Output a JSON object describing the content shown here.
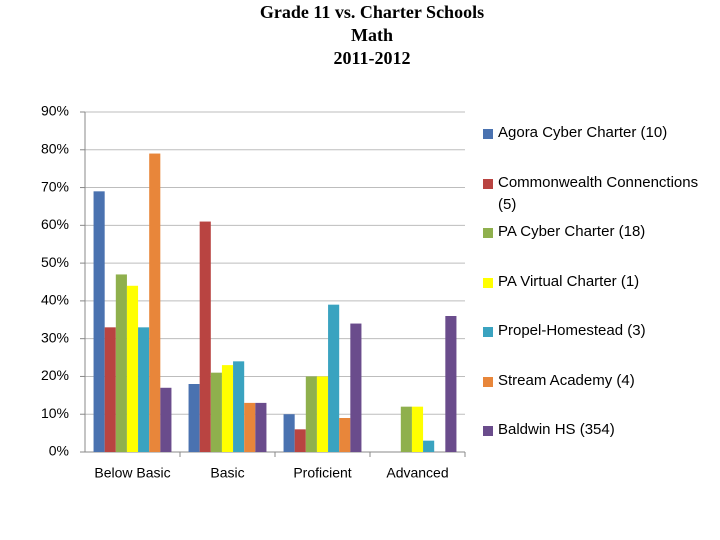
{
  "chart_data": {
    "type": "bar",
    "title": [
      "Grade 11 vs. Charter Schools",
      "Math",
      "2011-2012"
    ],
    "categories": [
      "Below Basic",
      "Basic",
      "Proficient",
      "Advanced"
    ],
    "series": [
      {
        "name": "Agora Cyber Charter (10)",
        "color": "#4a72b0",
        "values": [
          69,
          18,
          10,
          0
        ]
      },
      {
        "name": "Commonwealth Connenctions (5)",
        "color": "#b94441",
        "values": [
          33,
          61,
          6,
          0
        ]
      },
      {
        "name": "PA Cyber Charter (18)",
        "color": "#8fb04d",
        "values": [
          47,
          21,
          20,
          12
        ]
      },
      {
        "name": "PA Virtual Charter (1)",
        "color": "#ffff00",
        "values": [
          44,
          23,
          20,
          12
        ]
      },
      {
        "name": "Propel-Homestead (3)",
        "color": "#3aa3c0",
        "values": [
          33,
          24,
          39,
          3
        ]
      },
      {
        "name": "Stream Academy (4)",
        "color": "#e8863a",
        "values": [
          79,
          13,
          9,
          0
        ]
      },
      {
        "name": "Baldwin HS (354)",
        "color": "#6a4c8c",
        "values": [
          17,
          13,
          34,
          36
        ]
      }
    ],
    "ylim": [
      0,
      90
    ],
    "yticks": [
      {
        "value": 0,
        "label": "0%"
      },
      {
        "value": 10,
        "label": "10%"
      },
      {
        "value": 20,
        "label": "20%"
      },
      {
        "value": 30,
        "label": "30%"
      },
      {
        "value": 40,
        "label": "40%"
      },
      {
        "value": 50,
        "label": "50%"
      },
      {
        "value": 60,
        "label": "60%"
      },
      {
        "value": 70,
        "label": "70%"
      },
      {
        "value": 80,
        "label": "80%"
      },
      {
        "value": 90,
        "label": "90%"
      }
    ],
    "grid": true
  }
}
